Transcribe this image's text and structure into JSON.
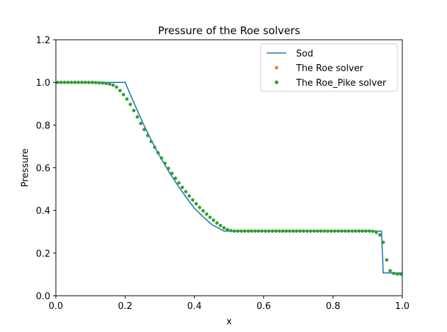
{
  "chart_data": {
    "type": "line",
    "title": "Pressure of the Roe solvers",
    "xlabel": "x",
    "ylabel": "Pressure",
    "xlim": [
      0.0,
      1.0
    ],
    "ylim": [
      0.0,
      1.2
    ],
    "xticks": [
      "0.0",
      "0.2",
      "0.4",
      "0.6",
      "0.8",
      "1.0"
    ],
    "yticks": [
      "0.0",
      "0.2",
      "0.4",
      "0.6",
      "0.8",
      "1.0",
      "1.2"
    ],
    "grid": false,
    "legend_position": "top-right",
    "colors": {
      "sod": "#1f77b4",
      "roe": "#ff7f0e",
      "roe_pike": "#2ca02c",
      "axes": "#000000",
      "legend_border": "#cccccc"
    },
    "series": [
      {
        "name": "Sod",
        "kind": "line",
        "x": [
          0.0,
          0.2,
          0.225,
          0.25,
          0.275,
          0.3,
          0.325,
          0.35,
          0.375,
          0.4,
          0.425,
          0.45,
          0.485,
          0.6,
          0.7,
          0.8,
          0.9,
          0.94,
          0.945,
          1.0
        ],
        "y": [
          1.0,
          1.0,
          0.905,
          0.814,
          0.73,
          0.654,
          0.585,
          0.522,
          0.464,
          0.41,
          0.37,
          0.334,
          0.303,
          0.303,
          0.303,
          0.303,
          0.303,
          0.303,
          0.107,
          0.107
        ]
      },
      {
        "name": "The Roe solver",
        "kind": "markers",
        "x": [],
        "y": []
      },
      {
        "name": "The Roe_Pike solver",
        "kind": "markers",
        "x": [
          0.005,
          0.015,
          0.025,
          0.035,
          0.045,
          0.055,
          0.065,
          0.075,
          0.085,
          0.095,
          0.105,
          0.115,
          0.125,
          0.135,
          0.145,
          0.155,
          0.165,
          0.175,
          0.185,
          0.195,
          0.205,
          0.215,
          0.225,
          0.235,
          0.245,
          0.255,
          0.265,
          0.275,
          0.285,
          0.295,
          0.305,
          0.315,
          0.325,
          0.335,
          0.345,
          0.355,
          0.365,
          0.375,
          0.385,
          0.395,
          0.405,
          0.415,
          0.425,
          0.435,
          0.445,
          0.455,
          0.465,
          0.475,
          0.485,
          0.495,
          0.505,
          0.515,
          0.525,
          0.535,
          0.545,
          0.555,
          0.565,
          0.575,
          0.585,
          0.595,
          0.605,
          0.615,
          0.625,
          0.635,
          0.645,
          0.655,
          0.665,
          0.675,
          0.685,
          0.695,
          0.705,
          0.715,
          0.725,
          0.735,
          0.745,
          0.755,
          0.765,
          0.775,
          0.785,
          0.795,
          0.805,
          0.815,
          0.825,
          0.835,
          0.845,
          0.855,
          0.865,
          0.875,
          0.885,
          0.895,
          0.905,
          0.915,
          0.925,
          0.935,
          0.945,
          0.955,
          0.965,
          0.975,
          0.985,
          0.995
        ],
        "y": [
          1.0,
          1.0,
          1.0,
          1.0,
          1.0,
          1.0,
          1.0,
          1.0,
          1.0,
          1.0,
          1.0,
          0.999,
          0.998,
          0.997,
          0.995,
          0.992,
          0.987,
          0.978,
          0.962,
          0.943,
          0.922,
          0.897,
          0.868,
          0.838,
          0.808,
          0.779,
          0.751,
          0.723,
          0.696,
          0.67,
          0.645,
          0.621,
          0.597,
          0.574,
          0.551,
          0.529,
          0.508,
          0.488,
          0.468,
          0.449,
          0.431,
          0.414,
          0.398,
          0.383,
          0.368,
          0.354,
          0.341,
          0.329,
          0.318,
          0.31,
          0.305,
          0.303,
          0.303,
          0.303,
          0.303,
          0.303,
          0.303,
          0.303,
          0.303,
          0.303,
          0.303,
          0.303,
          0.303,
          0.303,
          0.303,
          0.303,
          0.303,
          0.303,
          0.303,
          0.303,
          0.303,
          0.303,
          0.303,
          0.303,
          0.303,
          0.303,
          0.303,
          0.303,
          0.303,
          0.303,
          0.303,
          0.303,
          0.303,
          0.303,
          0.303,
          0.303,
          0.303,
          0.303,
          0.303,
          0.303,
          0.303,
          0.302,
          0.297,
          0.285,
          0.25,
          0.168,
          0.117,
          0.105,
          0.102,
          0.101
        ]
      }
    ]
  }
}
